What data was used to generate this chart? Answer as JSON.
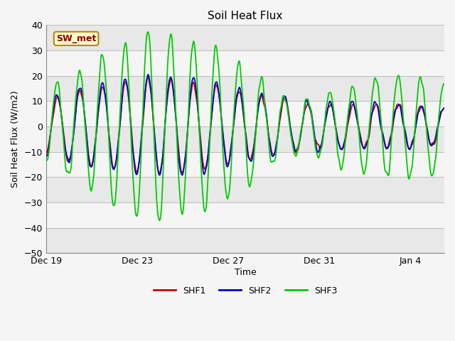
{
  "title": "Soil Heat Flux",
  "xlabel": "Time",
  "ylabel": "Soil Heat Flux (W/m2)",
  "ylim": [
    -50,
    40
  ],
  "yticks": [
    -50,
    -40,
    -30,
    -20,
    -10,
    0,
    10,
    20,
    30,
    40
  ],
  "shf1_color": "#cc0000",
  "shf2_color": "#0000cc",
  "shf3_color": "#00cc00",
  "annotation_text": "SW_met",
  "annotation_bg": "#ffffcc",
  "annotation_border": "#b8860b",
  "annotation_text_color": "#8b0000",
  "fig_bg": "#f5f5f5",
  "ax_bg": "#ffffff",
  "band_colors": [
    "#e8e8e8",
    "#f5f5f5"
  ],
  "grid_color": "#cccccc",
  "xtick_labels": [
    "Dec 19",
    "Dec 23",
    "Dec 27",
    "Dec 31",
    "Jan 4"
  ],
  "legend_labels": [
    "SHF1",
    "SHF2",
    "SHF3"
  ],
  "lw": 1.3,
  "total_days": 17.5,
  "n_points": 700
}
